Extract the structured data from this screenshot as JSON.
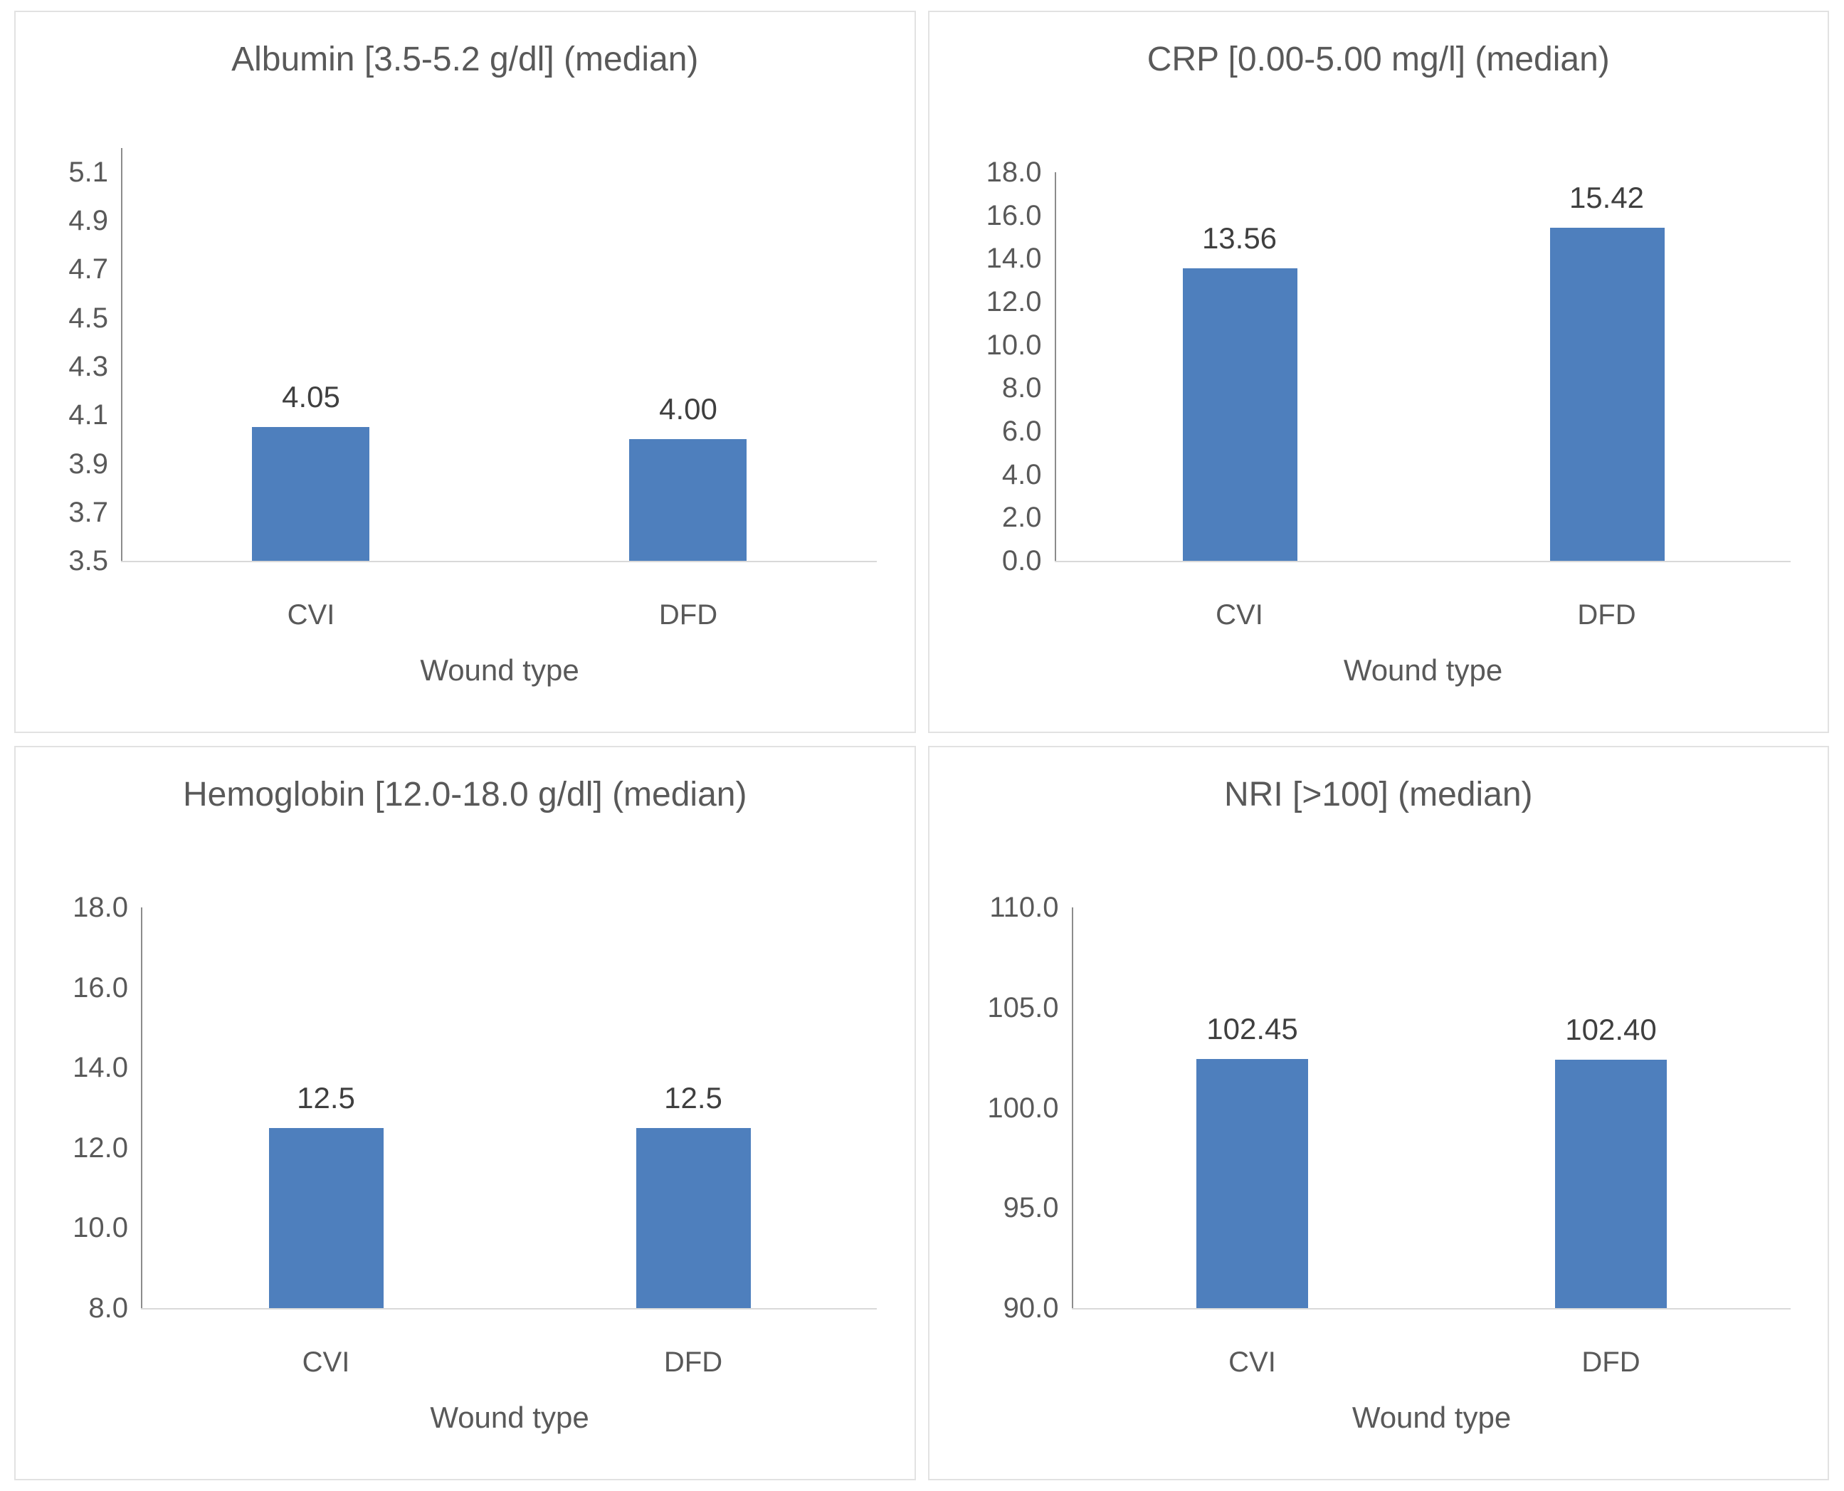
{
  "figure": {
    "layout": "2x2-grid",
    "description_visible_text_only": true
  },
  "styles": {
    "bar_color": "#4e7fbd",
    "text_color": "#595959",
    "data_label_color": "#3f3f3f",
    "axis_line_color": "#8c8c8c",
    "baseline_color": "#d9d9d9",
    "panel_border_color": "#e2e2e2",
    "background_color": "#ffffff"
  },
  "chart_data": [
    {
      "type": "bar",
      "title": "Albumin [3.5-5.2 g/dl] (median)",
      "xlabel": "Wound type",
      "ylabel": "",
      "categories": [
        "CVI",
        "DFD"
      ],
      "values": [
        4.05,
        4.0
      ],
      "value_labels": [
        "4.05",
        "4.00"
      ],
      "ylim": [
        3.5,
        5.2
      ],
      "yticks": [
        5.1,
        4.9,
        4.7,
        4.5,
        4.3,
        4.1,
        3.9,
        3.7,
        3.5
      ],
      "ytick_labels": [
        "5.1",
        "4.9",
        "4.7",
        "4.5",
        "4.3",
        "4.1",
        "3.9",
        "3.7",
        "3.5"
      ],
      "grid": false,
      "legend": null
    },
    {
      "type": "bar",
      "title": "CRP [0.00-5.00 mg/l] (median)",
      "xlabel": "Wound type",
      "ylabel": "",
      "categories": [
        "CVI",
        "DFD"
      ],
      "values": [
        13.56,
        15.42
      ],
      "value_labels": [
        "13.56",
        "15.42"
      ],
      "ylim": [
        0.0,
        18.0
      ],
      "yticks": [
        18.0,
        16.0,
        14.0,
        12.0,
        10.0,
        8.0,
        6.0,
        4.0,
        2.0,
        0.0
      ],
      "ytick_labels": [
        "18.0",
        "16.0",
        "14.0",
        "12.0",
        "10.0",
        "8.0",
        "6.0",
        "4.0",
        "2.0",
        "0.0"
      ],
      "grid": false,
      "legend": null
    },
    {
      "type": "bar",
      "title": "Hemoglobin [12.0-18.0 g/dl] (median)",
      "xlabel": "Wound type",
      "ylabel": "",
      "categories": [
        "CVI",
        "DFD"
      ],
      "values": [
        12.5,
        12.5
      ],
      "value_labels": [
        "12.5",
        "12.5"
      ],
      "ylim": [
        8.0,
        18.0
      ],
      "yticks": [
        18.0,
        16.0,
        14.0,
        12.0,
        10.0,
        8.0
      ],
      "ytick_labels": [
        "18.0",
        "16.0",
        "14.0",
        "12.0",
        "10.0",
        "8.0"
      ],
      "grid": false,
      "legend": null
    },
    {
      "type": "bar",
      "title": "NRI [>100] (median)",
      "xlabel": "Wound type",
      "ylabel": "",
      "categories": [
        "CVI",
        "DFD"
      ],
      "values": [
        102.45,
        102.4
      ],
      "value_labels": [
        "102.45",
        "102.40"
      ],
      "ylim": [
        90.0,
        110.0
      ],
      "yticks": [
        110.0,
        105.0,
        100.0,
        95.0,
        90.0
      ],
      "ytick_labels": [
        "110.0",
        "105.0",
        "100.0",
        "95.0",
        "90.0"
      ],
      "grid": false,
      "legend": null
    }
  ]
}
